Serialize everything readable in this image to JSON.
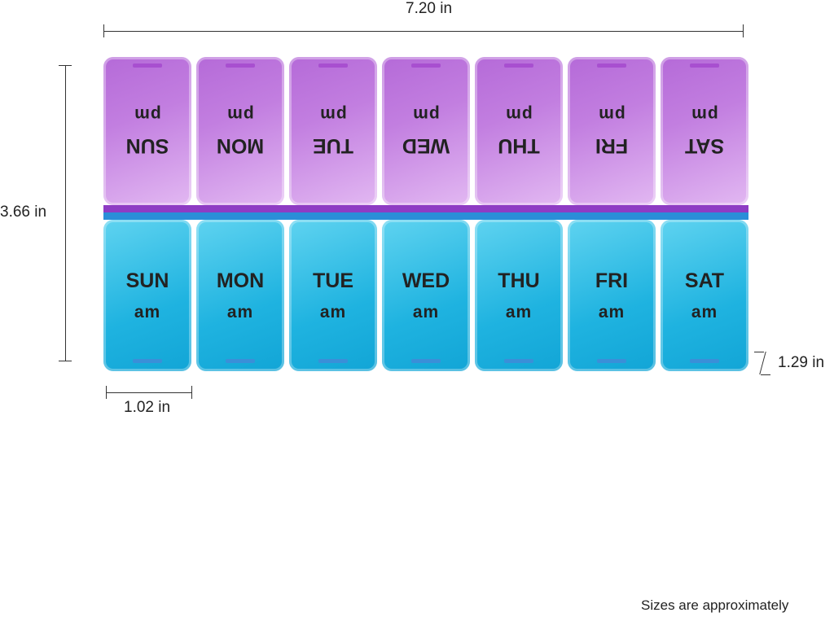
{
  "dimensions": {
    "width": "7.20 in",
    "height": "3.66 in",
    "compartment_width": "1.02 in",
    "compartment_depth": "1.29 in"
  },
  "pm_row": {
    "period": "pm",
    "days": [
      "SUN",
      "MON",
      "TUE",
      "WED",
      "THU",
      "FRI",
      "SAT"
    ],
    "color": "#c27ee0"
  },
  "am_row": {
    "period": "am",
    "days": [
      "SUN",
      "MON",
      "TUE",
      "WED",
      "THU",
      "FRI",
      "SAT"
    ],
    "color": "#1fb3e0"
  },
  "note": "Sizes are approximately"
}
